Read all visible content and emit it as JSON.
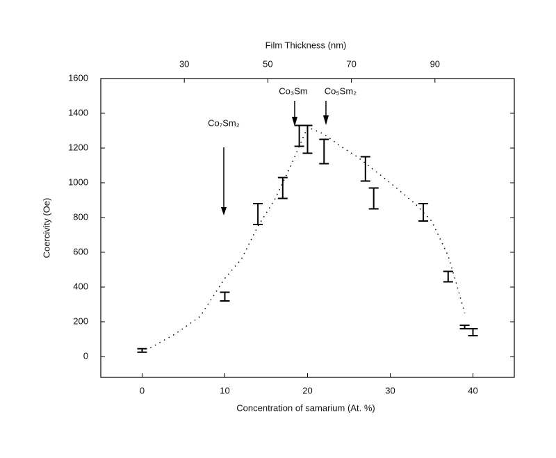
{
  "chart_data": {
    "type": "scatter",
    "xlabel": "Concentration of samarium (At. %)",
    "ylabel": "Coercivity (Oe)",
    "x2label": "Film Thickness (nm)",
    "xlim": [
      -5,
      45
    ],
    "xticks": [
      0,
      10,
      20,
      30,
      40
    ],
    "ylim": [
      -120,
      1600
    ],
    "yticks": [
      0,
      200,
      400,
      600,
      800,
      1000,
      1200,
      1400,
      1600
    ],
    "x2lim": [
      10,
      109
    ],
    "x2ticks": [
      30,
      50,
      70,
      90
    ],
    "series": [
      {
        "style": "errorbar",
        "color": "#000000",
        "x": [
          0,
          10,
          14,
          17,
          19,
          20,
          22,
          27,
          28,
          34,
          37,
          39,
          40
        ],
        "values": [
          35,
          345,
          820,
          970,
          1270,
          1250,
          1180,
          1080,
          910,
          830,
          460,
          170,
          140
        ],
        "errors": [
          10,
          25,
          60,
          60,
          60,
          80,
          70,
          70,
          60,
          50,
          30,
          10,
          20
        ]
      },
      {
        "style": "dotted",
        "color": "#000000",
        "x": [
          1,
          4,
          7,
          10,
          12,
          14,
          16,
          18,
          20,
          22,
          24,
          26,
          30,
          33,
          35,
          37,
          38,
          39
        ],
        "values": [
          50,
          130,
          230,
          450,
          560,
          750,
          900,
          1100,
          1320,
          1280,
          1210,
          1150,
          1000,
          880,
          780,
          580,
          420,
          250
        ]
      }
    ],
    "annotations": [
      "Co₇Sm₂",
      "Co₃Sm",
      "Co₅Sm₂"
    ]
  }
}
